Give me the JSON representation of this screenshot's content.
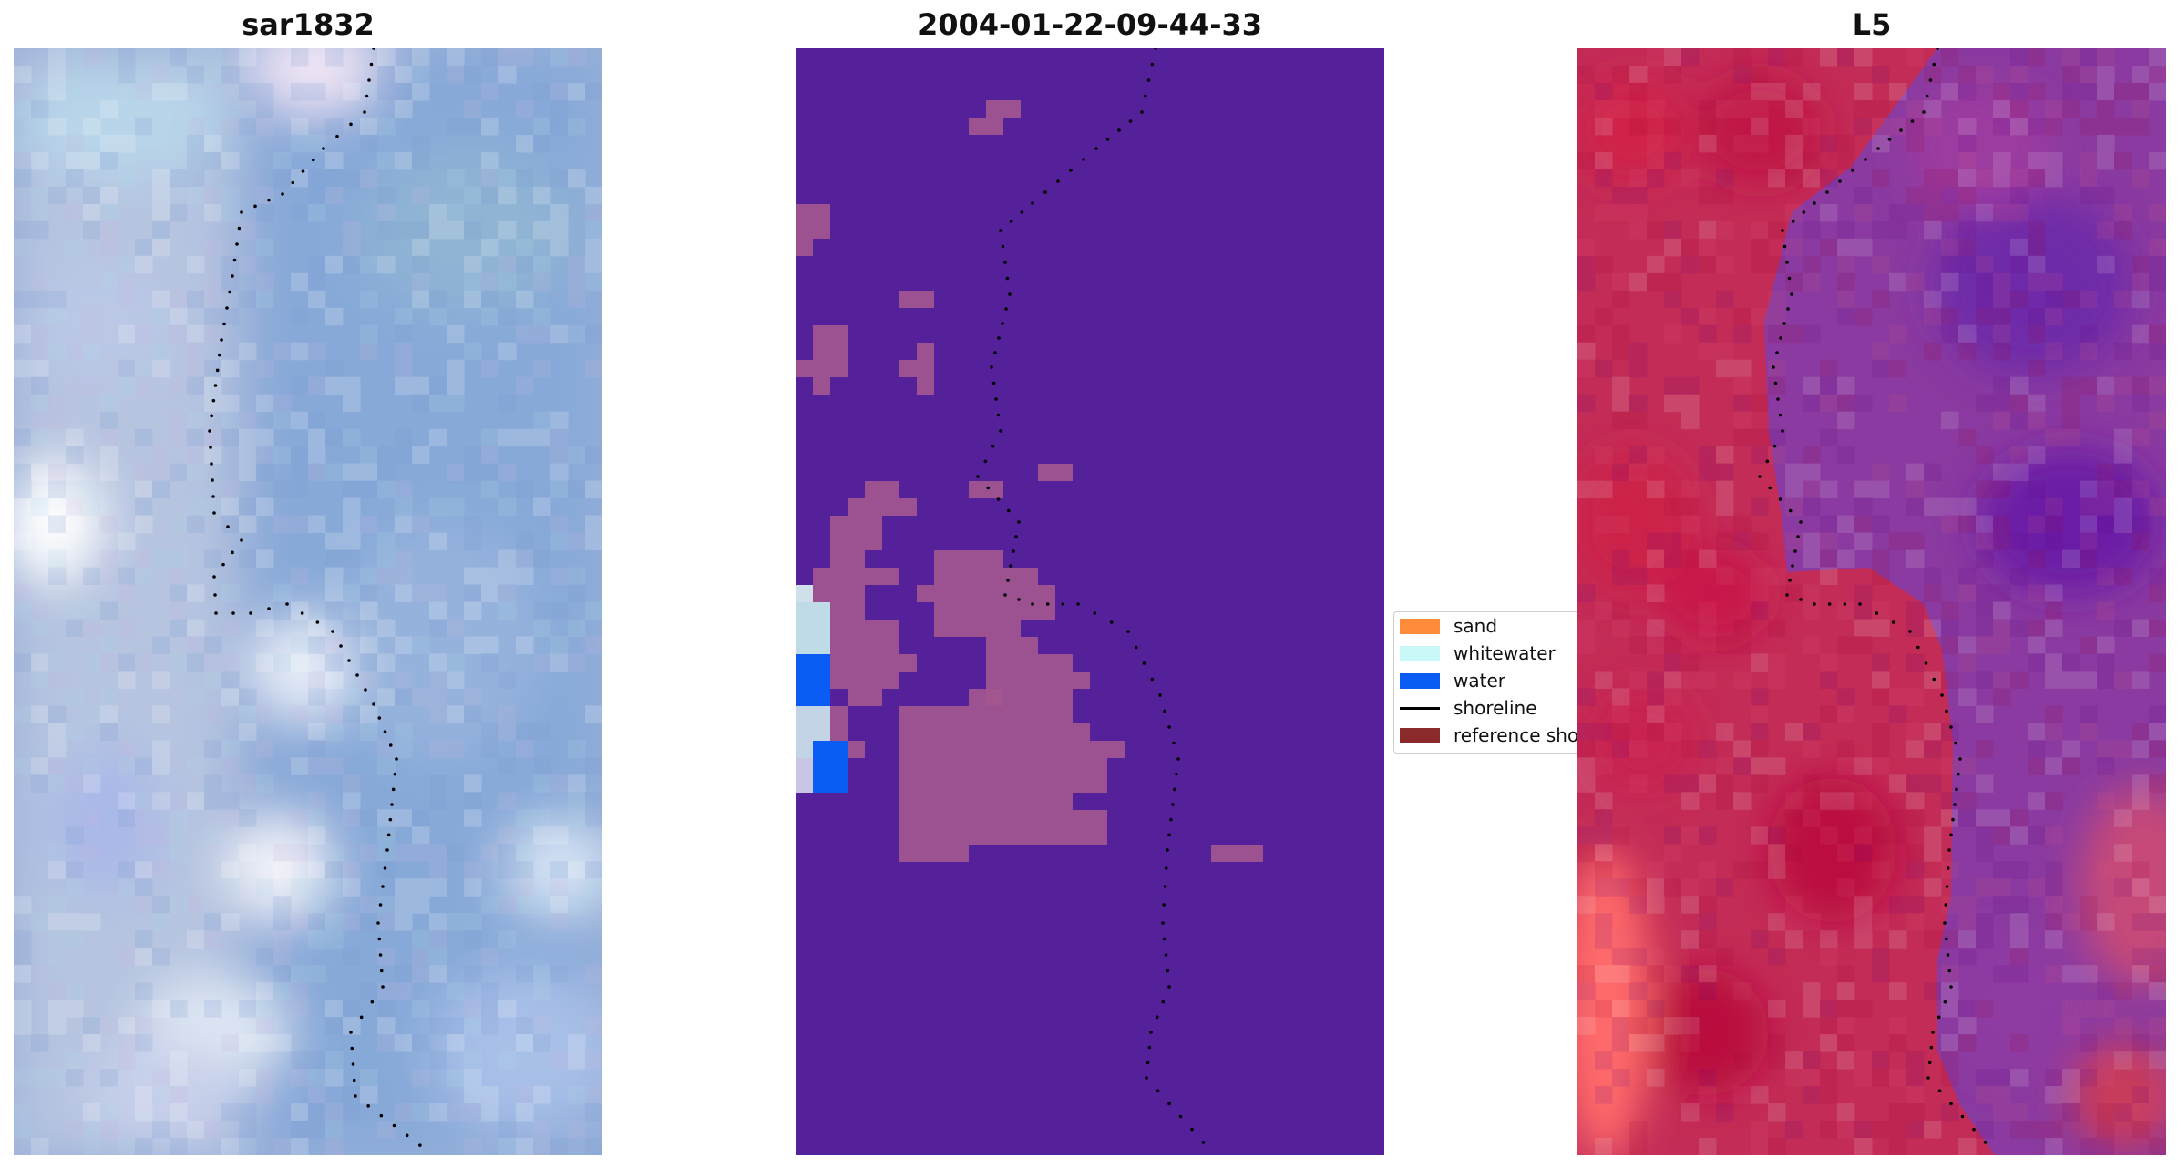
{
  "panels": [
    {
      "id": "sar-image",
      "title": "sar1832"
    },
    {
      "id": "classified-image",
      "title": "2004-01-22-09-44-33"
    },
    {
      "id": "index-image",
      "title": "L5"
    }
  ],
  "legend": {
    "items": [
      {
        "label": "sand",
        "color": "#ff8c3a"
      },
      {
        "label": "whitewater",
        "color": "#c8f8f8"
      },
      {
        "label": "water",
        "color": "#0a5cf5"
      },
      {
        "label": "shoreline",
        "color": "#000000",
        "line": true
      },
      {
        "label": "reference shoreline",
        "color": "#8b2a2a"
      }
    ]
  },
  "colors": {
    "classified_background": "#54219a",
    "sand_overlay": "#a3568f",
    "shoreline_dots": "#000000"
  }
}
